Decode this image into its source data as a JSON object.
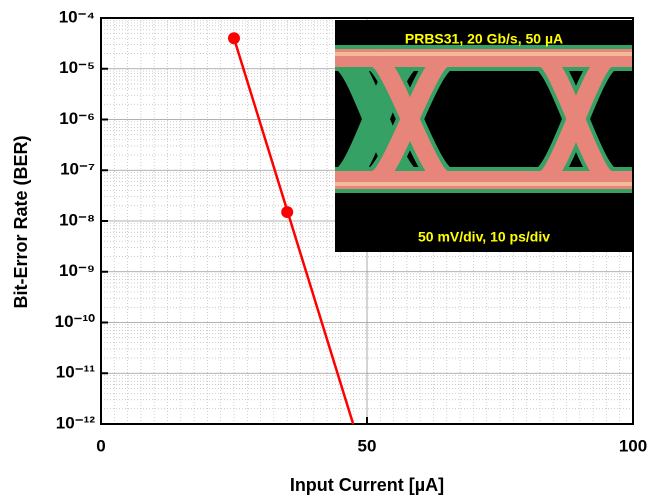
{
  "chart_data": {
    "type": "line",
    "y_label": "Bit-Error Rate (BER)",
    "x_label": "Input Current [µA]",
    "annotations": [
      "PRBS31, 20 Gb/s, 50 µA",
      "50 mV/div, 10 ps/div"
    ],
    "xlim": [
      0,
      100
    ],
    "xticks": [
      0,
      50,
      100
    ],
    "ylim": [
      1e-12,
      0.0001
    ],
    "yticks": [
      {
        "value": 1e-12,
        "label": "10⁻¹²"
      },
      {
        "value": 1e-11,
        "label": "10⁻¹¹"
      },
      {
        "value": 1e-10,
        "label": "10⁻¹⁰"
      },
      {
        "value": 1e-09,
        "label": "10⁻⁹"
      },
      {
        "value": 1e-08,
        "label": "10⁻⁸"
      },
      {
        "value": 1e-07,
        "label": "10⁻⁷"
      },
      {
        "value": 1e-06,
        "label": "10⁻⁶"
      },
      {
        "value": 1e-05,
        "label": "10⁻⁵"
      },
      {
        "value": 0.0001,
        "label": "10⁻⁴"
      }
    ],
    "log_y": true,
    "grid": true,
    "minor_grid": true,
    "series": [
      {
        "color": "#ff0000",
        "x": [
          25,
          47.4
        ],
        "values": [
          4e-05,
          1e-12
        ],
        "line": true,
        "marker": false
      },
      {
        "color": "#ff0000",
        "x": [
          25,
          35
        ],
        "values": [
          4e-05,
          1.5e-08
        ],
        "line": false,
        "marker": true
      }
    ]
  }
}
